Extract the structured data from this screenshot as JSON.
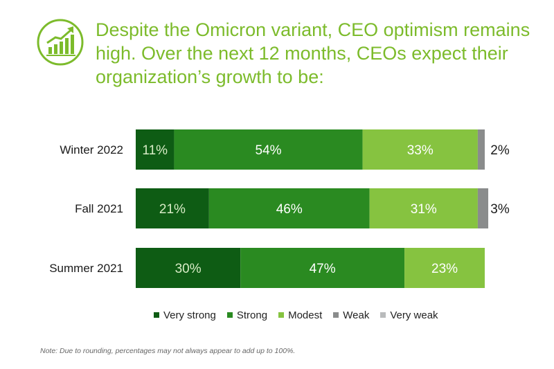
{
  "header": {
    "icon": "growth-chart-icon",
    "title": "Despite the Omicron variant, CEO optimism remains high. Over the next 12 months, CEOs expect their organization’s growth to be:",
    "accent_color": "#7cbb2b"
  },
  "chart_data": {
    "type": "bar",
    "orientation": "horizontal",
    "stacked": true,
    "title": "",
    "xlabel": "",
    "ylabel": "",
    "xlim": [
      0,
      100
    ],
    "grid": false,
    "legend_position": "bottom",
    "categories": [
      "Winter 2022",
      "Fall 2021",
      "Summer 2021"
    ],
    "series": [
      {
        "name": "Very strong",
        "color": "#0e5c14",
        "values": [
          11,
          21,
          30
        ],
        "labels": [
          "11%",
          "21%",
          "30%"
        ]
      },
      {
        "name": "Strong",
        "color": "#2a8a21",
        "values": [
          54,
          46,
          47
        ],
        "labels": [
          "54%",
          "46%",
          "47%"
        ]
      },
      {
        "name": "Modest",
        "color": "#86c340",
        "values": [
          33,
          31,
          23
        ],
        "labels": [
          "33%",
          "31%",
          "23%"
        ]
      },
      {
        "name": "Weak",
        "color": "#8a8c8c",
        "values": [
          2,
          3,
          0
        ],
        "labels": [
          "2%",
          "3%",
          ""
        ]
      },
      {
        "name": "Very weak",
        "color": "#b9bbbc",
        "values": [
          0,
          0,
          0
        ],
        "labels": [
          "",
          "",
          ""
        ]
      }
    ]
  },
  "note": "Note: Due to rounding, percentages may not always appear to add up to 100%."
}
